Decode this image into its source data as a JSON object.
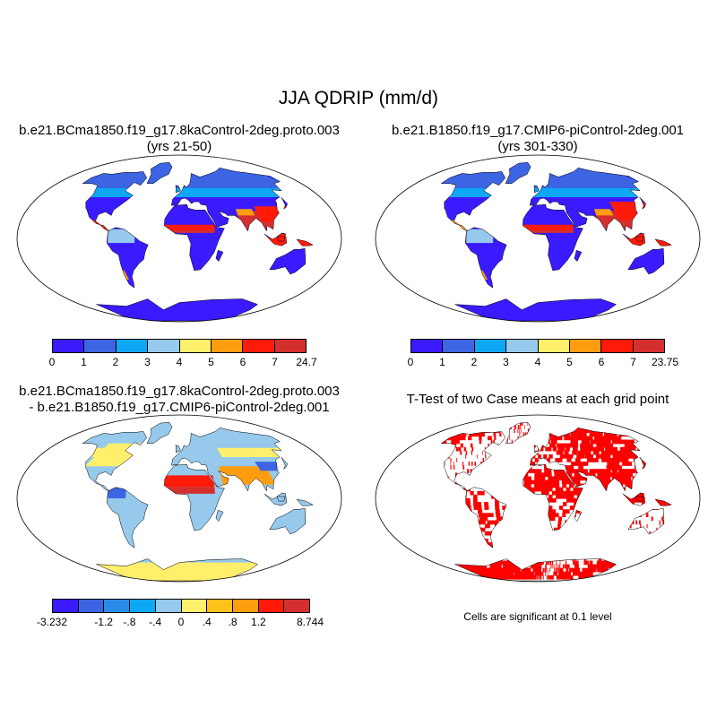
{
  "title": "JJA QDRIP (mm/d)",
  "panels": {
    "top_left": {
      "case": "b.e21.BCma1850.f19_g17.8kaControl-2deg.proto.003",
      "years": "(yrs 21-50)",
      "colorbar": {
        "colors": [
          "#3a1aff",
          "#3d64e2",
          "#0ea7f4",
          "#96c9eb",
          "#ffef6b",
          "#ff9d10",
          "#ff1a0a",
          "#d32f2f"
        ],
        "ticks": [
          "0",
          "1",
          "2",
          "3",
          "4",
          "5",
          "6",
          "7",
          "24.7"
        ]
      }
    },
    "top_right": {
      "case": "b.e21.B1850.f19_g17.CMIP6-piControl-2deg.001",
      "years": "(yrs 301-330)",
      "colorbar": {
        "colors": [
          "#3a1aff",
          "#3d64e2",
          "#0ea7f4",
          "#96c9eb",
          "#ffef6b",
          "#ff9d10",
          "#ff1a0a",
          "#d32f2f"
        ],
        "ticks": [
          "0",
          "1",
          "2",
          "3",
          "4",
          "5",
          "6",
          "7",
          "23.75"
        ]
      }
    },
    "bottom_left": {
      "line1": "b.e21.BCma1850.f19_g17.8kaControl-2deg.proto.003",
      "line2": "- b.e21.B1850.f19_g17.CMIP6-piControl-2deg.001",
      "colorbar": {
        "colors": [
          "#3a1aff",
          "#3d64e2",
          "#2b8ae8",
          "#0ea7f4",
          "#96c9eb",
          "#ffef6b",
          "#ffc21a",
          "#ff9d10",
          "#ff1a0a",
          "#d32f2f"
        ],
        "ticks": [
          "-3.232",
          "",
          "-1.2",
          "-.8",
          "-.4",
          "0",
          ".4",
          ".8",
          "1.2",
          "",
          "8.744"
        ]
      }
    },
    "bottom_right": {
      "title": "T-Test of two Case means at each grid point",
      "note": "Cells are significant at 0.1 level",
      "color": "#ff0000"
    }
  }
}
